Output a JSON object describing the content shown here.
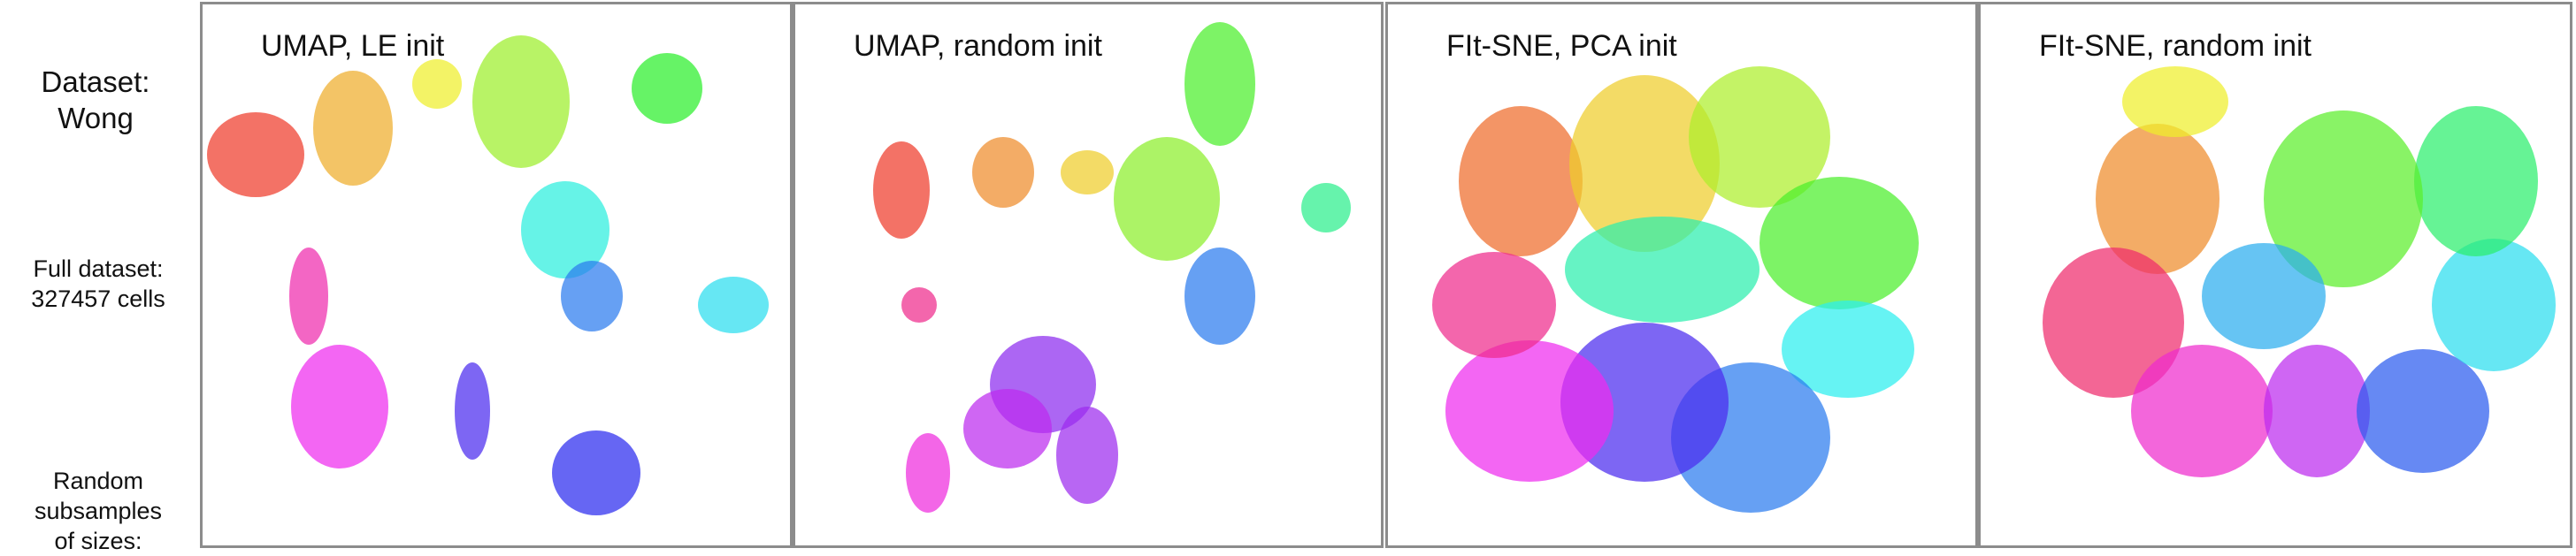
{
  "row_labels": {
    "dataset": [
      "Dataset:",
      "Wong"
    ],
    "full": [
      "Full dataset:",
      "327457 cells"
    ],
    "random": [
      "Random",
      "subsamples",
      "of sizes:"
    ]
  },
  "panels": [
    {
      "title": "UMAP, LE init"
    },
    {
      "title": "UMAP, random init"
    },
    {
      "title": "FIt-SNE, PCA init"
    },
    {
      "title": "FIt-SNE, random init"
    }
  ]
}
